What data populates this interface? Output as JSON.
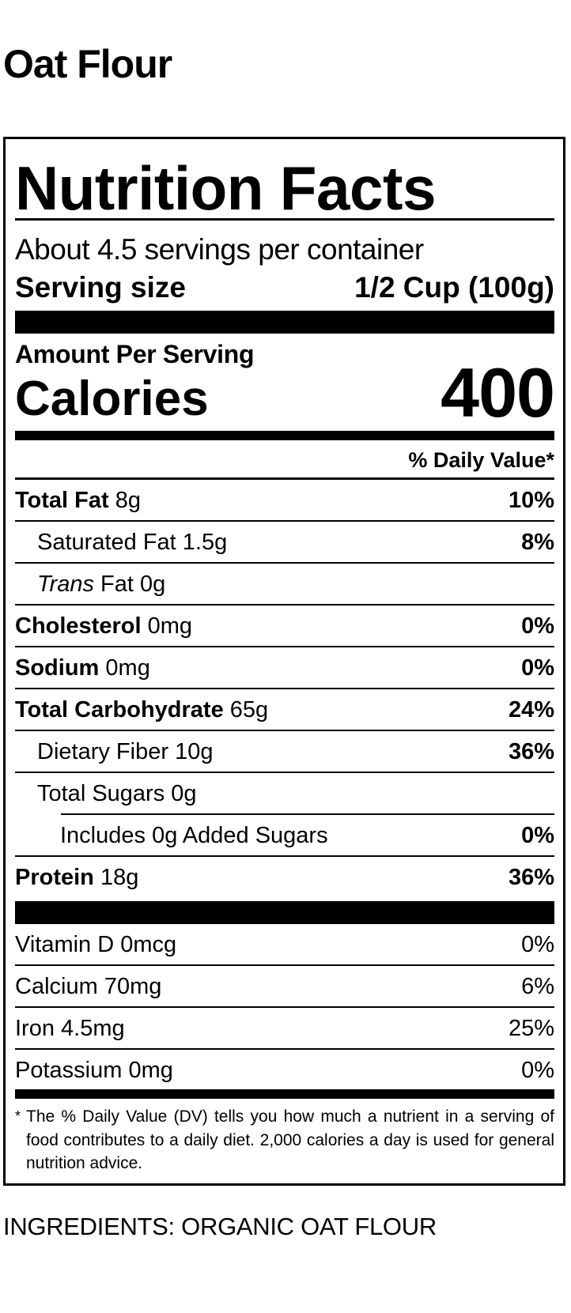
{
  "product_title": "Oat Flour",
  "label": {
    "heading": "Nutrition Facts",
    "servings_per_container": "About 4.5 servings per container",
    "serving_size_label": "Serving size",
    "serving_size_value": "1/2 Cup (100g)",
    "amount_per_serving": "Amount Per Serving",
    "calories_label": "Calories",
    "calories_value": "400",
    "daily_value_header": "% Daily Value*",
    "nutrients": [
      {
        "name": "Total Fat",
        "amount": "8g",
        "dv": "10%",
        "bold": true,
        "indent": 0
      },
      {
        "name": "Saturated Fat",
        "amount": "1.5g",
        "dv": "8%",
        "bold": false,
        "indent": 1
      },
      {
        "name": "Trans",
        "name_suffix": "Fat",
        "amount": "0g",
        "dv": "",
        "bold": false,
        "italic": true,
        "indent": 1
      },
      {
        "name": "Cholesterol",
        "amount": "0mg",
        "dv": "0%",
        "bold": true,
        "indent": 0
      },
      {
        "name": "Sodium",
        "amount": "0mg",
        "dv": "0%",
        "bold": true,
        "indent": 0
      },
      {
        "name": "Total Carbohydrate",
        "amount": "65g",
        "dv": "24%",
        "bold": true,
        "indent": 0
      },
      {
        "name": "Dietary Fiber",
        "amount": "10g",
        "dv": "36%",
        "bold": false,
        "indent": 1
      },
      {
        "name": "Total Sugars",
        "amount": "0g",
        "dv": "",
        "bold": false,
        "indent": 1
      },
      {
        "name": "Includes 0g Added Sugars",
        "amount": "",
        "dv": "0%",
        "bold": false,
        "indent": 2
      },
      {
        "name": "Protein",
        "amount": "18g",
        "dv": "36%",
        "bold": true,
        "indent": 0
      }
    ],
    "vitamins": [
      {
        "name": "Vitamin D",
        "amount": "0mcg",
        "dv": "0%"
      },
      {
        "name": "Calcium",
        "amount": "70mg",
        "dv": "6%"
      },
      {
        "name": "Iron",
        "amount": "4.5mg",
        "dv": "25%"
      },
      {
        "name": "Potassium",
        "amount": "0mg",
        "dv": "0%"
      }
    ],
    "footnote_marker": "*",
    "footnote": "The % Daily Value (DV) tells you how much a nutrient in a serving of food contributes to a daily diet. 2,000 calories a day is used for general nutrition advice."
  },
  "ingredients": "INGREDIENTS: ORGANIC OAT FLOUR"
}
